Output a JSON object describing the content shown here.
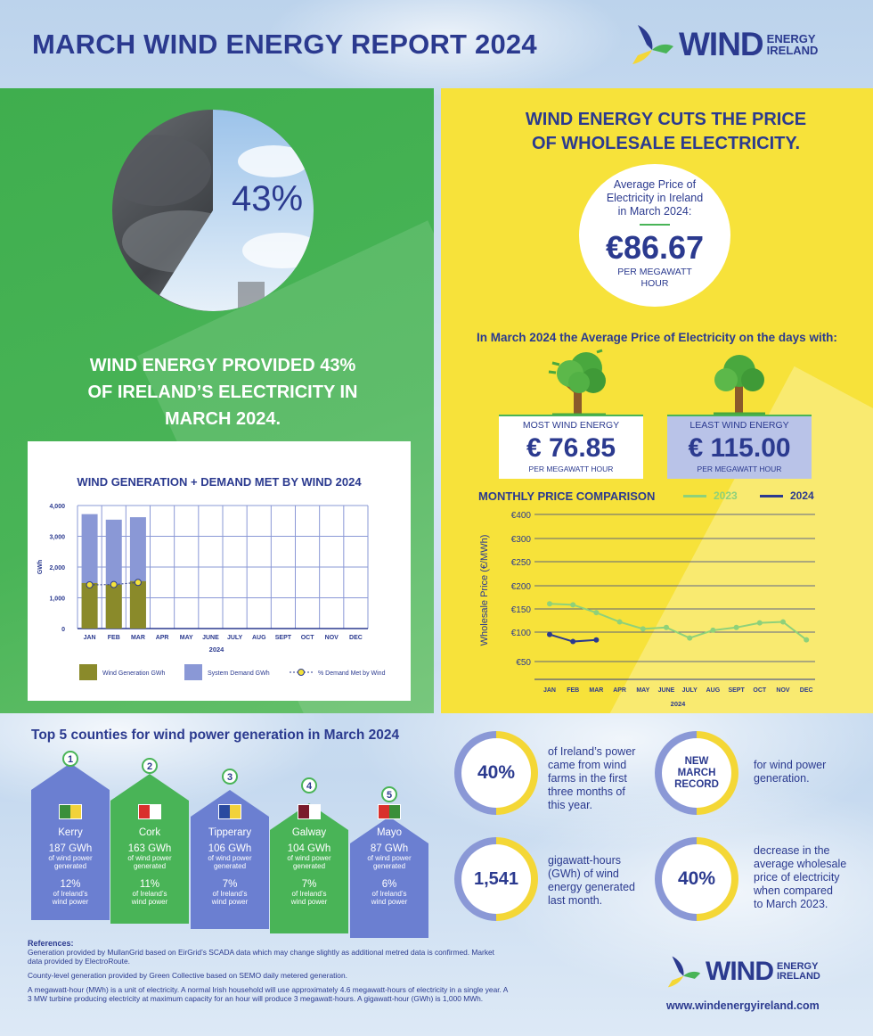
{
  "header": {
    "title": "MARCH WIND ENERGY REPORT 2024",
    "logo_word": "WIND",
    "logo_sub1": "ENERGY",
    "logo_sub2": "IRELAND"
  },
  "green_panel": {
    "pie_percent_label": "43%",
    "pie_value": 43,
    "headline_line1": "WIND ENERGY PROVIDED 43%",
    "headline_line2": "OF IRELAND’S ELECTRICITY IN",
    "headline_line3": "MARCH 2024."
  },
  "chart_data": [
    {
      "type": "bar",
      "title": "WIND GENERATION + DEMAND MET BY WIND 2024",
      "xlabel": "2024",
      "ylabel": "GWh",
      "ylim": [
        0,
        4000
      ],
      "yticks": [
        "0",
        "1,000",
        "2,000",
        "3,000",
        "4,000"
      ],
      "ytick_values": [
        0,
        1000,
        2000,
        3000,
        4000
      ],
      "categories": [
        "JAN",
        "FEB",
        "MAR",
        "APR",
        "MAY",
        "JUNE",
        "JULY",
        "AUG",
        "SEPT",
        "OCT",
        "NOV",
        "DEC"
      ],
      "series": [
        {
          "name": "Wind Generation GWh",
          "values": [
            1480,
            1430,
            1541,
            null,
            null,
            null,
            null,
            null,
            null,
            null,
            null,
            null
          ]
        },
        {
          "name": "System Demand GWh",
          "values": [
            3720,
            3540,
            3620,
            null,
            null,
            null,
            null,
            null,
            null,
            null,
            null,
            null
          ]
        },
        {
          "name": "% Demand Met by Wind",
          "values": [
            1420,
            1430,
            1500,
            null,
            null,
            null,
            null,
            null,
            null,
            null,
            null,
            null
          ]
        }
      ],
      "grid": true,
      "legend": "bottom"
    },
    {
      "type": "line",
      "title": "MONTHLY PRICE COMPARISON",
      "xlabel": "2024",
      "ylabel": "Wholesale Price (€/MWh)",
      "categories": [
        "JAN",
        "FEB",
        "MAR",
        "APR",
        "MAY",
        "JUNE",
        "JULY",
        "AUG",
        "SEPT",
        "OCT",
        "NOV",
        "DEC"
      ],
      "yticks": [
        "€50",
        "€100",
        "€150",
        "€200",
        "€250",
        "€300",
        "€400"
      ],
      "series": [
        {
          "name": "2023",
          "color": "#8ed17a",
          "values": [
            161,
            159,
            142,
            122,
            107,
            110,
            90,
            104,
            110,
            120,
            122,
            87
          ]
        },
        {
          "name": "2024",
          "color": "#2b3a8f",
          "values": [
            96,
            84,
            86.67,
            null,
            null,
            null,
            null,
            null,
            null,
            null,
            null,
            null
          ]
        }
      ],
      "grid": true,
      "legend": "top-right"
    }
  ],
  "yellow_panel": {
    "title_line1": "WIND ENERGY CUTS THE PRICE",
    "title_line2": "OF WHOLESALE ELECTRICITY.",
    "avg_label_line1": "Average Price of",
    "avg_label_line2": "Electricity in Ireland",
    "avg_label_line3": "in March 2024:",
    "avg_price": "€86.67",
    "avg_unit_line1": "PER MEGAWATT",
    "avg_unit_line2": "HOUR",
    "subheading": "In March 2024 the Average Price of Electricity on the days with:",
    "most_label": "MOST WIND ENERGY",
    "most_value": "€ 76.85",
    "most_unit": "PER MEGAWATT HOUR",
    "least_label": "LEAST WIND ENERGY",
    "least_value": "€ 115.00",
    "least_unit": "PER MEGAWATT HOUR",
    "legend_2023": "2023",
    "legend_2024": "2024"
  },
  "chart1_legend": {
    "wind_gen": "Wind Generation GWh",
    "demand": "System Demand GWh",
    "pct": "% Demand Met by Wind"
  },
  "top5": {
    "title": "Top 5 counties for wind power generation in March 2024",
    "counties": [
      {
        "rank": "1",
        "name": "Kerry",
        "gwh": "187 GWh",
        "gwh_note1": "of wind power",
        "gwh_note2": "generated",
        "pct": "12%",
        "pct_note1": "of Ireland’s",
        "pct_note2": "wind power"
      },
      {
        "rank": "2",
        "name": "Cork",
        "gwh": "163 GWh",
        "gwh_note1": "of wind power",
        "gwh_note2": "generated",
        "pct": "11%",
        "pct_note1": "of Ireland’s",
        "pct_note2": "wind power"
      },
      {
        "rank": "3",
        "name": "Tipperary",
        "gwh": "106 GWh",
        "gwh_note1": "of wind power",
        "gwh_note2": "generated",
        "pct": "7%",
        "pct_note1": "of Ireland’s",
        "pct_note2": "wind power"
      },
      {
        "rank": "4",
        "name": "Galway",
        "gwh": "104 GWh",
        "gwh_note1": "of wind power",
        "gwh_note2": "generated",
        "pct": "7%",
        "pct_note1": "of Ireland’s",
        "pct_note2": "wind power"
      },
      {
        "rank": "5",
        "name": "Mayo",
        "gwh": "87 GWh",
        "gwh_note1": "of wind power",
        "gwh_note2": "generated",
        "pct": "6%",
        "pct_note1": "of Ireland’s",
        "pct_note2": "wind power"
      }
    ]
  },
  "stats": {
    "s1_value": "40%",
    "s1_text": [
      "of Ireland’s power",
      "came from wind",
      "farms in the first",
      "three months of",
      "this year."
    ],
    "s2_value": [
      "NEW",
      "MARCH",
      "RECORD"
    ],
    "s2_text": [
      "for wind power",
      "generation."
    ],
    "s3_value": "1,541",
    "s3_text": [
      "gigawatt-hours",
      "(GWh) of wind",
      "energy generated",
      "last month."
    ],
    "s4_value": "40%",
    "s4_text": [
      "decrease in the",
      "average wholesale",
      "price of electricity",
      "when compared",
      "to March 2023."
    ]
  },
  "references": {
    "heading": "References:",
    "p1": "Generation provided by MullanGrid based on EirGrid’s SCADA data which may change slightly as additional metred data is confirmed. Market data provided by ElectroRoute.",
    "p2": "County-level generation provided by Green Collective based on SEMO daily metered generation.",
    "p3": "A megawatt-hour (MWh) is a unit of electricity. A normal Irish household will use approximately 4.6 megawatt-hours of electricity in a single year. A 3 MW turbine producing electricity at maximum capacity for an hour will produce 3 megawatt-hours. A gigawatt-hour (GWh) is 1,000 MWh."
  },
  "footer": {
    "website": "www.windenergyireland.com"
  },
  "colors": {
    "navy": "#2b3a8f",
    "green": "#49b457",
    "yellow": "#f7e23a",
    "periwinkle": "#8a98d6",
    "olive": "#8a8a2a"
  }
}
